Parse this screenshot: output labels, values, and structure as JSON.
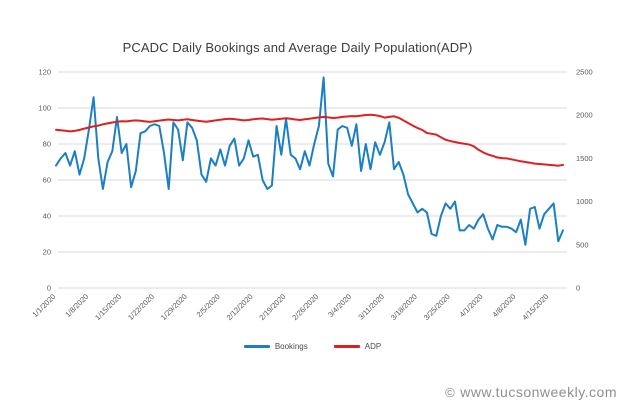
{
  "title": "PCADC Daily Bookings and Average Daily Population(ADP)",
  "watermark": {
    "symbol": "©",
    "text": "www.tucsonweekly.com"
  },
  "colors": {
    "bookings": "#1b7fc5",
    "adp": "#e01f1f",
    "gridline": "#d9d9d9",
    "tick_text": "#595959",
    "title_text": "#3d3d3d",
    "watermark_text": "#8f8f8f"
  },
  "chart_data": {
    "type": "line",
    "title": "PCADC Daily Bookings and Average Daily Population(ADP)",
    "xlabel": "",
    "ylabel_left": "",
    "ylabel_right": "",
    "grid": true,
    "legend_position": "bottom",
    "x_start_date": "1/1/2020",
    "x_end_date": "4/18/2020",
    "x_tick_labels": [
      "1/1/2020",
      "1/8/2020",
      "1/15/2020",
      "1/22/2020",
      "1/29/2020",
      "2/5/2020",
      "2/12/2020",
      "2/19/2020",
      "2/26/2020",
      "3/4/2020",
      "3/11/2020",
      "3/18/2020",
      "3/25/2020",
      "4/1/2020",
      "4/8/2020",
      "4/15/2020"
    ],
    "x_tick_day_indices": [
      0,
      7,
      14,
      21,
      28,
      35,
      42,
      49,
      56,
      63,
      70,
      77,
      84,
      91,
      98,
      105
    ],
    "left_axis": {
      "min": 0,
      "max": 120,
      "step": 20,
      "ticks": [
        0,
        20,
        40,
        60,
        80,
        100,
        120
      ]
    },
    "right_axis": {
      "min": 0,
      "max": 2500,
      "step": 500,
      "ticks": [
        0,
        500,
        1000,
        1500,
        2000,
        2500
      ]
    },
    "series": [
      {
        "name": "Bookings",
        "axis": "left",
        "color": "#1b7fc5",
        "values": [
          68,
          72,
          75,
          68,
          76,
          63,
          72,
          88,
          106,
          72,
          55,
          70,
          76,
          95,
          75,
          80,
          56,
          65,
          86,
          87,
          90,
          91,
          90,
          75,
          55,
          92,
          88,
          71,
          92,
          89,
          82,
          63,
          59,
          72,
          68,
          77,
          68,
          79,
          83,
          68,
          72,
          82,
          73,
          74,
          60,
          55,
          57,
          90,
          74,
          94,
          74,
          72,
          66,
          76,
          68,
          80,
          90,
          117,
          69,
          62,
          88,
          90,
          89,
          79,
          91,
          65,
          80,
          66,
          81,
          74,
          81,
          92,
          66,
          70,
          63,
          52,
          47,
          42,
          44,
          42,
          30,
          29,
          40,
          47,
          44,
          48,
          32,
          32,
          35,
          33,
          38,
          41,
          33,
          27,
          35,
          34,
          34,
          33,
          31,
          38,
          24,
          44,
          45,
          33,
          41,
          44,
          47,
          26,
          32
        ]
      },
      {
        "name": "ADP",
        "axis": "right",
        "color": "#e01f1f",
        "values": [
          1832,
          1825,
          1820,
          1812,
          1818,
          1830,
          1845,
          1858,
          1870,
          1880,
          1895,
          1905,
          1915,
          1925,
          1930,
          1928,
          1935,
          1940,
          1935,
          1928,
          1922,
          1930,
          1938,
          1945,
          1950,
          1945,
          1940,
          1948,
          1952,
          1945,
          1938,
          1930,
          1925,
          1932,
          1940,
          1948,
          1955,
          1960,
          1955,
          1948,
          1940,
          1945,
          1952,
          1958,
          1962,
          1955,
          1948,
          1952,
          1960,
          1965,
          1958,
          1950,
          1945,
          1952,
          1960,
          1968,
          1975,
          1980,
          1975,
          1968,
          1972,
          1980,
          1985,
          1990,
          1987,
          1995,
          2002,
          2006,
          2000,
          1990,
          1972,
          1980,
          1987,
          1970,
          1940,
          1910,
          1880,
          1852,
          1830,
          1794,
          1785,
          1775,
          1745,
          1716,
          1700,
          1690,
          1678,
          1670,
          1661,
          1640,
          1600,
          1570,
          1545,
          1530,
          1510,
          1504,
          1500,
          1490,
          1478,
          1466,
          1458,
          1450,
          1440,
          1435,
          1430,
          1425,
          1420,
          1415,
          1425
        ]
      }
    ]
  }
}
